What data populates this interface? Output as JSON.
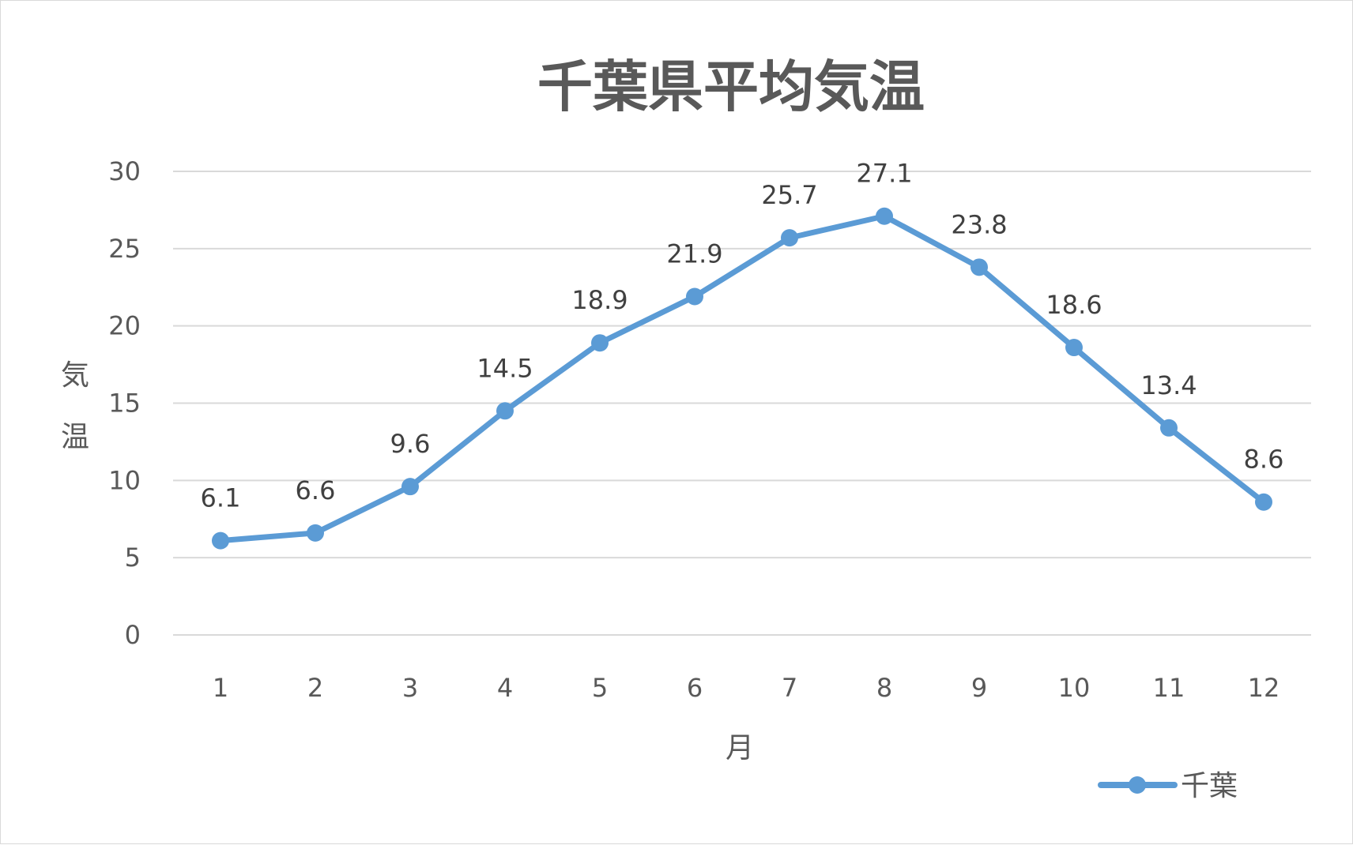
{
  "chart_data": {
    "type": "line",
    "title": "千葉県平均気温",
    "xlabel": "月",
    "ylabel": "気温",
    "categories": [
      "1",
      "2",
      "3",
      "4",
      "5",
      "6",
      "7",
      "8",
      "9",
      "10",
      "11",
      "12"
    ],
    "series": [
      {
        "name": "千葉",
        "values": [
          6.1,
          6.6,
          9.6,
          14.5,
          18.9,
          21.9,
          25.7,
          27.1,
          23.8,
          18.6,
          13.4,
          8.6
        ],
        "color": "#5b9bd5"
      }
    ],
    "ylim": [
      0,
      30
    ],
    "yticks": [
      "0",
      "5",
      "10",
      "15",
      "20",
      "25",
      "30"
    ],
    "grid": true,
    "legend_position": "bottom-right",
    "data_labels": true
  }
}
